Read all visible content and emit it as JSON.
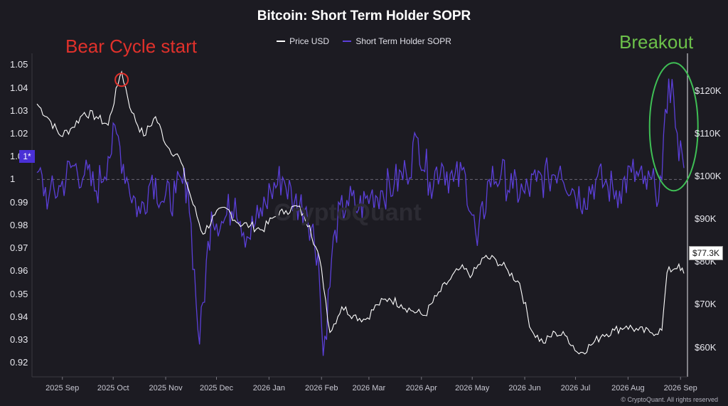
{
  "chart_data": {
    "type": "line",
    "title": "Bitcoin: Short Term Holder SOPR",
    "legend": [
      {
        "name": "Price USD",
        "color": "#ffffff"
      },
      {
        "name": "Short Term Holder SOPR",
        "color": "#5b3fd8"
      }
    ],
    "legend_placement": "top-center",
    "x_range": [
      "2025-08-17",
      "2026-09-03"
    ],
    "x_ticks": [
      {
        "date": "2025-09-01",
        "label": "2025 Sep"
      },
      {
        "date": "2025-10-01",
        "label": "2025 Oct"
      },
      {
        "date": "2025-11-01",
        "label": "2025 Nov"
      },
      {
        "date": "2025-12-01",
        "label": "2025 Dec"
      },
      {
        "date": "2026-01-01",
        "label": "2026 Jan"
      },
      {
        "date": "2026-02-01",
        "label": "2026 Feb"
      },
      {
        "date": "2026-03-01",
        "label": "2026 Mar"
      },
      {
        "date": "2026-04-01",
        "label": "2026 Apr"
      },
      {
        "date": "2026-05-01",
        "label": "2026 May"
      },
      {
        "date": "2026-06-01",
        "label": "2026 Jun"
      },
      {
        "date": "2026-07-01",
        "label": "2026 Jul"
      },
      {
        "date": "2026-08-01",
        "label": "2026 Aug"
      },
      {
        "date": "2026-09-01",
        "label": "2026 Sep"
      }
    ],
    "y_left": {
      "range": [
        0.9185,
        1.0535
      ],
      "ticks": [
        "1.05",
        "1.04",
        "1.03",
        "1.02",
        "1.01",
        "1",
        "0.99",
        "0.98",
        "0.97",
        "0.96",
        "0.95",
        "0.94",
        "0.93",
        "0.92"
      ],
      "reference_line": 1,
      "reference_badge": "1*"
    },
    "y_right": {
      "range": [
        55600,
        128000
      ],
      "ticks": [
        {
          "value": 120000,
          "label": "$120K"
        },
        {
          "value": 110000,
          "label": "$110K"
        },
        {
          "value": 100000,
          "label": "$100K"
        },
        {
          "value": 90000,
          "label": "$90K"
        },
        {
          "value": 80000,
          "label": "$80K"
        },
        {
          "value": 70000,
          "label": "$70K"
        },
        {
          "value": 60000,
          "label": "$60K"
        }
      ],
      "last_value_label": "$77.3K"
    },
    "grid": false,
    "series": [
      {
        "name": "Price USD",
        "axis": "right",
        "color": "#ffffff",
        "points": [
          [
            "2025-08-17",
            117000
          ],
          [
            "2025-08-24",
            113500
          ],
          [
            "2025-08-31",
            109500
          ],
          [
            "2025-09-07",
            111500
          ],
          [
            "2025-09-14",
            115000
          ],
          [
            "2025-09-21",
            114000
          ],
          [
            "2025-09-28",
            112000
          ],
          [
            "2025-10-05",
            123500
          ],
          [
            "2025-10-06",
            124500
          ],
          [
            "2025-10-12",
            115000
          ],
          [
            "2025-10-19",
            109500
          ],
          [
            "2025-10-26",
            114000
          ],
          [
            "2025-11-02",
            107000
          ],
          [
            "2025-11-09",
            104500
          ],
          [
            "2025-11-16",
            95000
          ],
          [
            "2025-11-23",
            86500
          ],
          [
            "2025-11-30",
            91000
          ],
          [
            "2025-12-07",
            92500
          ],
          [
            "2025-12-14",
            89000
          ],
          [
            "2025-12-21",
            88500
          ],
          [
            "2025-12-28",
            87500
          ],
          [
            "2026-01-04",
            90500
          ],
          [
            "2026-01-11",
            92000
          ],
          [
            "2026-01-18",
            93000
          ],
          [
            "2026-01-25",
            88500
          ],
          [
            "2026-02-01",
            78500
          ],
          [
            "2026-02-06",
            63500
          ],
          [
            "2026-02-13",
            69500
          ],
          [
            "2026-02-20",
            67500
          ],
          [
            "2026-02-27",
            66500
          ],
          [
            "2026-03-06",
            70000
          ],
          [
            "2026-03-13",
            71500
          ],
          [
            "2026-03-20",
            70000
          ],
          [
            "2026-03-27",
            68500
          ],
          [
            "2026-04-03",
            67500
          ],
          [
            "2026-04-10",
            72000
          ],
          [
            "2026-04-17",
            75500
          ],
          [
            "2026-04-24",
            78500
          ],
          [
            "2026-05-01",
            77000
          ],
          [
            "2026-05-08",
            81000
          ],
          [
            "2026-05-15",
            80500
          ],
          [
            "2026-05-22",
            78000
          ],
          [
            "2026-05-29",
            75000
          ],
          [
            "2026-06-05",
            64000
          ],
          [
            "2026-06-12",
            61000
          ],
          [
            "2026-06-19",
            63500
          ],
          [
            "2026-06-26",
            62500
          ],
          [
            "2026-07-03",
            58500
          ],
          [
            "2026-07-10",
            60500
          ],
          [
            "2026-07-17",
            63000
          ],
          [
            "2026-07-24",
            64000
          ],
          [
            "2026-07-31",
            65000
          ],
          [
            "2026-08-07",
            64000
          ],
          [
            "2026-08-14",
            63500
          ],
          [
            "2026-08-21",
            64000
          ],
          [
            "2026-08-24",
            77500
          ],
          [
            "2026-08-31",
            79500
          ],
          [
            "2026-09-01",
            78000
          ],
          [
            "2026-09-03",
            77300
          ]
        ]
      },
      {
        "name": "Short Term Holder SOPR",
        "axis": "left",
        "color": "#5b3fd8",
        "points": [
          [
            "2025-08-17",
            1.003
          ],
          [
            "2025-08-24",
            0.992
          ],
          [
            "2025-08-31",
            0.997
          ],
          [
            "2025-09-07",
            1.006
          ],
          [
            "2025-09-14",
            1.002
          ],
          [
            "2025-09-21",
            0.995
          ],
          [
            "2025-09-28",
            1.01
          ],
          [
            "2025-10-03",
            1.02
          ],
          [
            "2025-10-10",
            0.998
          ],
          [
            "2025-10-17",
            0.985
          ],
          [
            "2025-10-24",
            1.002
          ],
          [
            "2025-10-31",
            0.99
          ],
          [
            "2025-11-07",
            0.994
          ],
          [
            "2025-11-14",
            0.999
          ],
          [
            "2025-11-21",
            0.928
          ],
          [
            "2025-11-28",
            0.986
          ],
          [
            "2025-12-05",
            0.981
          ],
          [
            "2025-12-12",
            0.992
          ],
          [
            "2025-12-19",
            0.975
          ],
          [
            "2025-12-26",
            0.983
          ],
          [
            "2026-01-02",
            0.995
          ],
          [
            "2026-01-09",
            1.001
          ],
          [
            "2026-01-16",
            0.99
          ],
          [
            "2026-01-23",
            0.988
          ],
          [
            "2026-01-30",
            0.968
          ],
          [
            "2026-02-02",
            0.923
          ],
          [
            "2026-02-09",
            0.978
          ],
          [
            "2026-02-16",
            0.991
          ],
          [
            "2026-02-23",
            0.987
          ],
          [
            "2026-03-02",
            0.993
          ],
          [
            "2026-03-09",
            0.995
          ],
          [
            "2026-03-16",
            0.998
          ],
          [
            "2026-03-23",
            1.003
          ],
          [
            "2026-03-30",
            1.018
          ],
          [
            "2026-04-06",
            0.999
          ],
          [
            "2026-04-13",
            1.007
          ],
          [
            "2026-04-20",
            0.999
          ],
          [
            "2026-04-27",
            1.002
          ],
          [
            "2026-05-04",
            0.971
          ],
          [
            "2026-05-11",
            1.0
          ],
          [
            "2026-05-18",
            1.002
          ],
          [
            "2026-05-25",
            0.996
          ],
          [
            "2026-06-01",
            0.994
          ],
          [
            "2026-06-08",
            0.999
          ],
          [
            "2026-06-15",
            1.001
          ],
          [
            "2026-06-22",
            1.006
          ],
          [
            "2026-06-29",
            0.996
          ],
          [
            "2026-07-06",
            0.992
          ],
          [
            "2026-07-13",
            1.0
          ],
          [
            "2026-07-20",
            0.997
          ],
          [
            "2026-07-27",
            0.995
          ],
          [
            "2026-08-03",
            1.003
          ],
          [
            "2026-08-10",
            0.998
          ],
          [
            "2026-08-17",
            0.996
          ],
          [
            "2026-08-21",
            1.0
          ],
          [
            "2026-08-25",
            1.044
          ],
          [
            "2026-08-28",
            1.036
          ],
          [
            "2026-08-31",
            1.008
          ],
          [
            "2026-09-02",
            1.011
          ],
          [
            "2026-09-03",
            1.005
          ]
        ]
      }
    ],
    "annotations": [
      {
        "text": "Bear Cycle start",
        "color": "#e0312b",
        "target_date": "2025-10-06",
        "target_value": 1.0435,
        "target_axis": "left"
      },
      {
        "text": "Breakout",
        "color": "#6cc04a",
        "target_date": "2026-08-28",
        "target_value": 1.023,
        "target_axis": "left"
      }
    ],
    "watermark": "CryptoQuant",
    "credit": "© CryptoQuant. All rights reserved"
  }
}
